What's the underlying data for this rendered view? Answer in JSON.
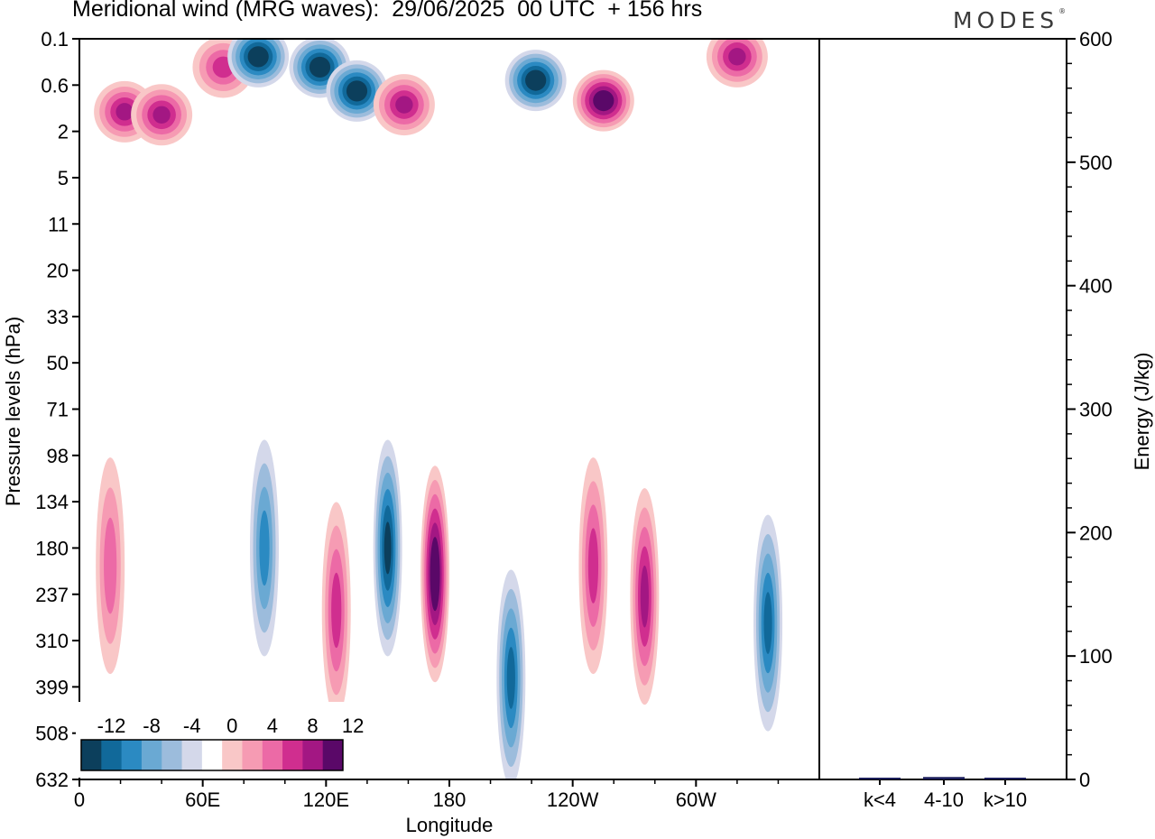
{
  "title": "Meridional wind (MRG waves):  29/06/2025  00 UTC  + 156 hrs",
  "logo_text": "MODES",
  "logo_mark": "®",
  "chart_data": [
    {
      "type": "heatmap",
      "title": "Meridional wind (MRG waves):  29/06/2025  00 UTC  + 156 hrs",
      "xlabel": "Longitude",
      "ylabel": "Pressure levels (hPa)",
      "x_ticks": [
        "0",
        "60E",
        "120E",
        "180",
        "120W",
        "60W"
      ],
      "x_range": [
        0,
        360
      ],
      "y_ticks": [
        "0.1",
        "0.6",
        "2",
        "5",
        "11",
        "20",
        "33",
        "50",
        "71",
        "98",
        "134",
        "180",
        "237",
        "310",
        "399",
        "508",
        "632"
      ],
      "colorbar": {
        "labels": [
          "-12",
          "-8",
          "-4",
          "0",
          "4",
          "8",
          "12"
        ],
        "levels": [
          -14,
          -12,
          -10,
          -8,
          -6,
          -4,
          -2,
          2,
          4,
          6,
          8,
          10,
          12,
          14
        ],
        "colors": [
          "#0c3f5c",
          "#11699a",
          "#2b8ac2",
          "#6aa9d3",
          "#9cbcdc",
          "#d4d8ea",
          "#ffffff",
          "#f9c7c7",
          "#f69bb3",
          "#ec6aa6",
          "#d02e8f",
          "#a31783",
          "#5a0868"
        ]
      },
      "features": [
        {
          "lon": 22,
          "level": 1.2,
          "value": 11
        },
        {
          "lon": 40,
          "level": 1.3,
          "value": 10
        },
        {
          "lon": 70,
          "level": 0.3,
          "value": 8
        },
        {
          "lon": 87,
          "level": 0.2,
          "value": -14
        },
        {
          "lon": 117,
          "level": 0.3,
          "value": -14
        },
        {
          "lon": 135,
          "level": 0.7,
          "value": -14
        },
        {
          "lon": 158,
          "level": 1.0,
          "value": 10
        },
        {
          "lon": 222,
          "level": 0.5,
          "value": -14
        },
        {
          "lon": 255,
          "level": 0.9,
          "value": 14
        },
        {
          "lon": 320,
          "level": 0.2,
          "value": 10
        },
        {
          "lon": 150,
          "level": 180,
          "value": -12
        },
        {
          "lon": 173,
          "level": 210,
          "value": 14
        },
        {
          "lon": 125,
          "level": 260,
          "value": 8
        },
        {
          "lon": 90,
          "level": 180,
          "value": -8
        },
        {
          "lon": 210,
          "level": 380,
          "value": -10
        },
        {
          "lon": 250,
          "level": 200,
          "value": 8
        },
        {
          "lon": 275,
          "level": 240,
          "value": 10
        },
        {
          "lon": 335,
          "level": 280,
          "value": -10
        },
        {
          "lon": 15,
          "level": 200,
          "value": 6
        }
      ]
    },
    {
      "type": "bar",
      "ylabel": "Energy (J/kg)",
      "categories": [
        "k<4",
        "4-10",
        "k>10"
      ],
      "values": [
        0.5,
        2,
        0.3
      ],
      "ylim": [
        0,
        600
      ],
      "y_ticks": [
        "0",
        "100",
        "200",
        "300",
        "400",
        "500",
        "600"
      ],
      "bar_color": "#1c1f5c"
    }
  ]
}
